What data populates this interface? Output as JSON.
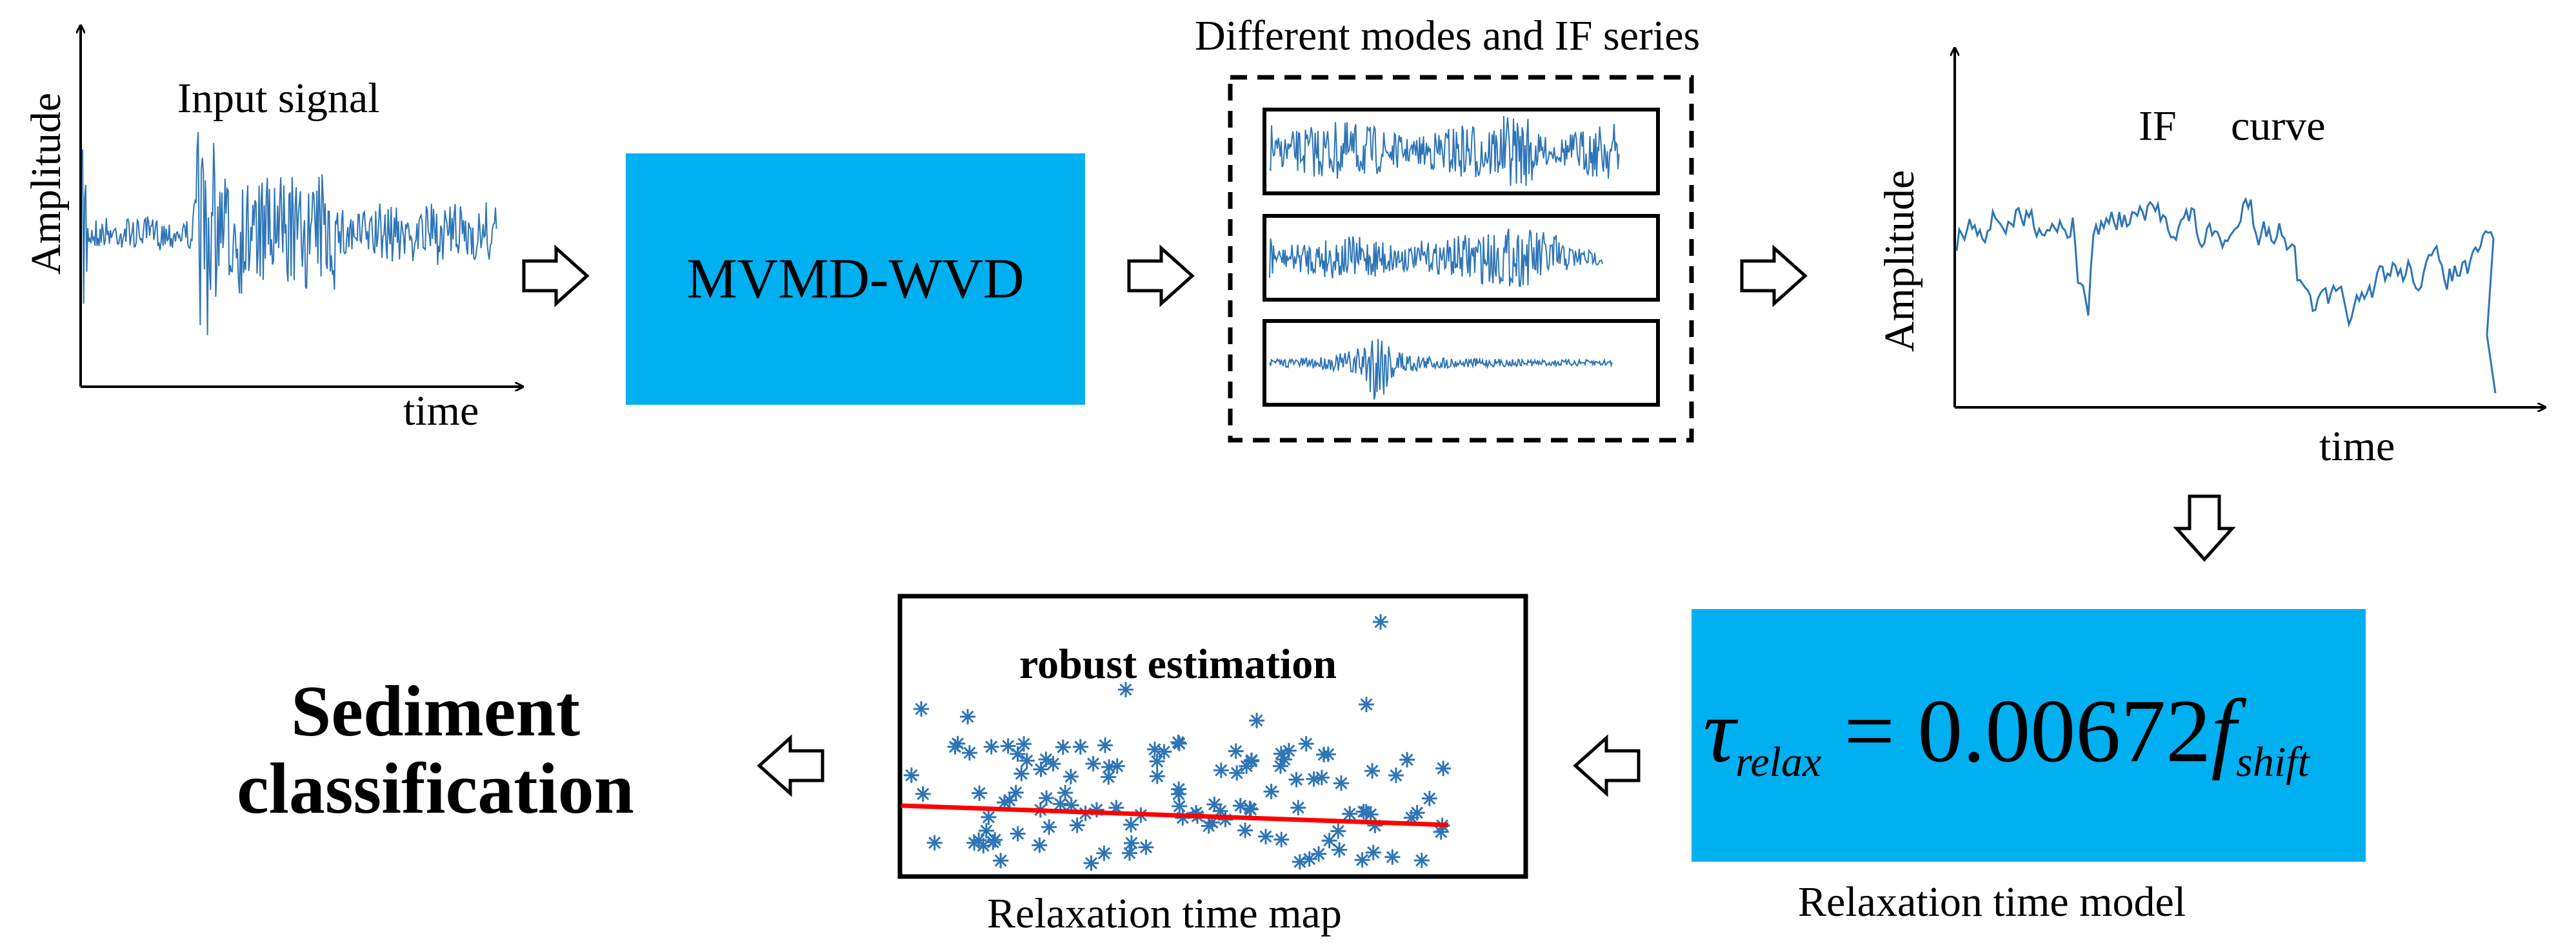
{
  "colors": {
    "signal": "#2e75b6",
    "box_fill": "#00b0f0",
    "fit_line": "#ff0000",
    "star": "#2e75b6",
    "ink": "#000000"
  },
  "input_panel": {
    "title": "Input signal",
    "ylabel": "Amplitude",
    "xlabel": "time"
  },
  "decomposition": {
    "label": "MVMD-WVD"
  },
  "modes_panel": {
    "title": "Different modes and IF series",
    "mode_count": 3
  },
  "if_panel": {
    "title_left": "IF",
    "title_right": "curve",
    "ylabel": "Amplitude",
    "xlabel": "time"
  },
  "model": {
    "tau": "τ",
    "tau_sub": "relax",
    "equals": "=",
    "coefficient": "0.00672",
    "f": "f",
    "f_sub": "shift",
    "caption": "Relaxation time model"
  },
  "map_panel": {
    "title": "robust estimation",
    "caption": "Relaxation time map"
  },
  "result": {
    "line1": "Sediment",
    "line2": "classification"
  },
  "icons": [
    "arrow-right-icon",
    "arrow-down-icon",
    "arrow-left-icon"
  ]
}
